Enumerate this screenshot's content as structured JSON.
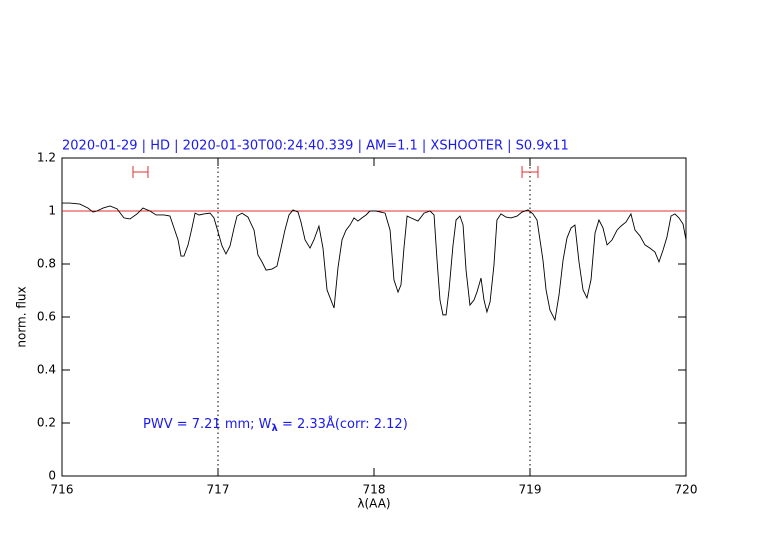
{
  "chart_data": {
    "type": "line",
    "title": "2020-01-29 | HD | 2020-01-30T00:24:40.339 | AM=1.1 | XSHOOTER | S0.9x11",
    "xlabel": "λ(AA)",
    "ylabel": "norm. flux",
    "annotation": [
      "PWV = 7.21 mm; W",
      "λ",
      " = 2.33Å(corr: 2.12)"
    ],
    "xlim": [
      716,
      720
    ],
    "ylim": [
      0,
      1.2
    ],
    "xticks": [
      716,
      717,
      718,
      719,
      720
    ],
    "yticks": [
      0,
      0.2,
      0.4,
      0.6,
      0.8,
      1,
      1.2
    ],
    "color": "#000000",
    "hline": 1,
    "hline_color": "#e03030",
    "vlines": [
      717,
      719
    ],
    "intervals": [
      {
        "x": [
          716.455,
          716.551
        ],
        "y": 1.147
      },
      {
        "x": [
          718.949,
          719.051
        ],
        "y": 1.147
      }
    ],
    "interval_color": "#e03030",
    "x": [
      716.0,
      716.051,
      716.115,
      716.167,
      716.199,
      716.224,
      716.263,
      716.308,
      716.353,
      716.397,
      716.436,
      716.481,
      716.519,
      716.564,
      716.603,
      716.654,
      716.692,
      716.718,
      716.744,
      716.763,
      716.782,
      716.808,
      716.833,
      716.853,
      716.878,
      716.91,
      716.949,
      716.974,
      717.0,
      717.026,
      717.051,
      717.077,
      717.103,
      717.122,
      717.154,
      717.192,
      717.231,
      717.256,
      717.282,
      717.308,
      717.346,
      717.378,
      717.404,
      717.429,
      717.455,
      717.481,
      717.513,
      717.532,
      717.558,
      717.59,
      717.615,
      717.647,
      717.673,
      717.699,
      717.724,
      717.744,
      717.769,
      717.795,
      717.821,
      717.846,
      717.872,
      717.897,
      717.923,
      717.949,
      717.974,
      718.013,
      718.071,
      718.103,
      718.128,
      718.154,
      718.173,
      718.192,
      718.212,
      718.237,
      718.282,
      718.321,
      718.359,
      718.385,
      718.404,
      718.423,
      718.442,
      718.462,
      718.481,
      718.506,
      718.526,
      718.551,
      718.571,
      718.59,
      718.615,
      718.641,
      718.66,
      718.686,
      718.705,
      718.724,
      718.744,
      718.769,
      718.788,
      718.814,
      718.846,
      718.878,
      718.917,
      718.949,
      718.987,
      719.019,
      719.045,
      719.064,
      719.083,
      719.103,
      719.128,
      719.16,
      719.186,
      719.212,
      719.237,
      719.263,
      719.288,
      719.314,
      719.34,
      719.365,
      719.391,
      719.417,
      719.442,
      719.468,
      719.494,
      719.526,
      719.558,
      719.583,
      719.615,
      719.647,
      719.673,
      719.705,
      719.737,
      719.769,
      719.801,
      719.827,
      719.853,
      719.878,
      719.904,
      719.929,
      719.955,
      719.981,
      720.0
    ],
    "values": [
      1.03,
      1.03,
      1.026,
      1.011,
      0.996,
      1.0,
      1.011,
      1.019,
      1.008,
      0.974,
      0.97,
      0.989,
      1.011,
      1.0,
      0.985,
      0.985,
      0.981,
      0.936,
      0.891,
      0.83,
      0.83,
      0.872,
      0.936,
      0.992,
      0.985,
      0.989,
      0.992,
      0.974,
      0.921,
      0.868,
      0.838,
      0.868,
      0.936,
      0.981,
      0.992,
      0.977,
      0.928,
      0.834,
      0.808,
      0.777,
      0.781,
      0.792,
      0.86,
      0.928,
      0.985,
      1.004,
      0.996,
      0.958,
      0.891,
      0.86,
      0.891,
      0.943,
      0.86,
      0.702,
      0.664,
      0.634,
      0.785,
      0.891,
      0.928,
      0.947,
      0.974,
      0.962,
      0.974,
      0.985,
      1.0,
      1.0,
      0.992,
      0.928,
      0.74,
      0.694,
      0.721,
      0.86,
      0.981,
      0.974,
      0.962,
      0.992,
      1.0,
      0.985,
      0.815,
      0.664,
      0.608,
      0.608,
      0.702,
      0.868,
      0.966,
      0.981,
      0.947,
      0.777,
      0.645,
      0.664,
      0.694,
      0.747,
      0.664,
      0.619,
      0.657,
      0.796,
      0.966,
      0.989,
      0.977,
      0.974,
      0.981,
      0.996,
      1.004,
      0.989,
      0.966,
      0.891,
      0.815,
      0.702,
      0.626,
      0.589,
      0.683,
      0.815,
      0.898,
      0.936,
      0.947,
      0.808,
      0.702,
      0.672,
      0.74,
      0.917,
      0.966,
      0.936,
      0.872,
      0.891,
      0.928,
      0.943,
      0.958,
      0.989,
      0.928,
      0.906,
      0.872,
      0.86,
      0.845,
      0.808,
      0.853,
      0.902,
      0.981,
      0.989,
      0.974,
      0.951,
      0.891
    ]
  }
}
